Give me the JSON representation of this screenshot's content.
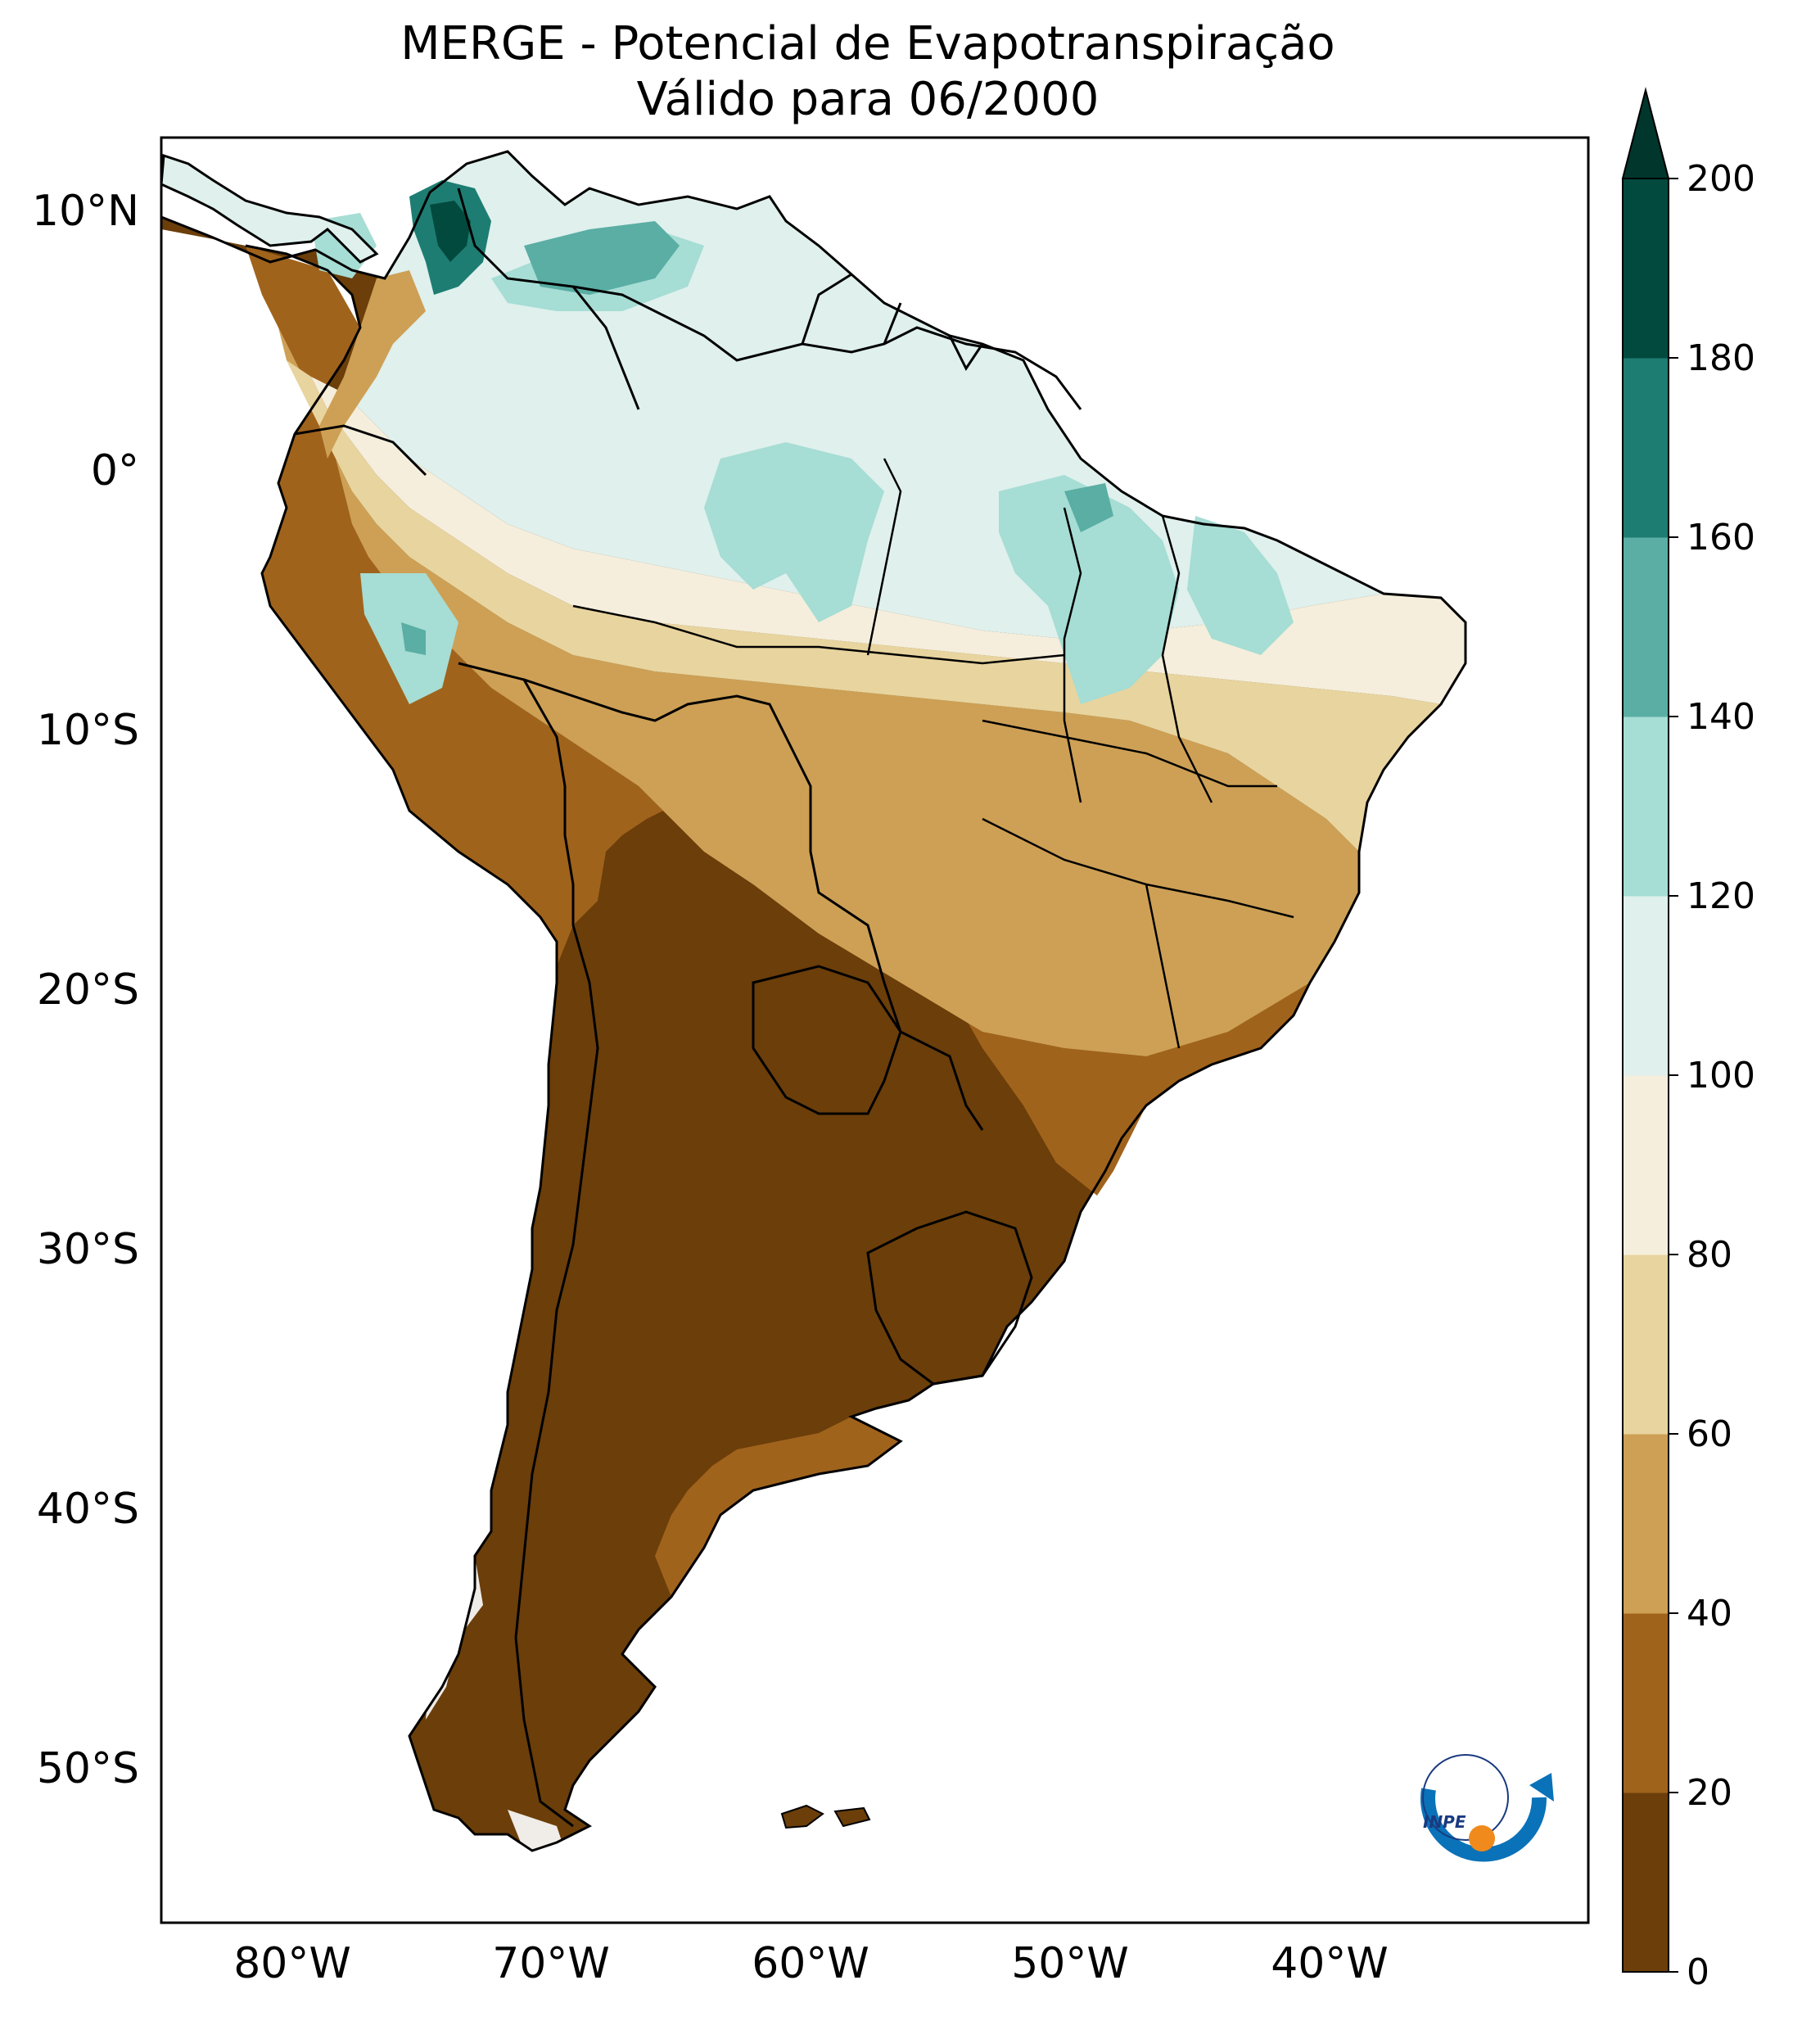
{
  "title": {
    "line1": "MERGE - Potencial de Evapotranspiração",
    "line2": "Válido para 06/2000"
  },
  "map": {
    "lat_labels": [
      "10°N",
      "0°",
      "10°S",
      "20°S",
      "30°S",
      "40°S",
      "50°S"
    ],
    "lon_labels": [
      "80°W",
      "70°W",
      "60°W",
      "50°W",
      "40°W"
    ],
    "extent": {
      "lon": [
        -85,
        -30
      ],
      "lat": [
        -56,
        13
      ]
    }
  },
  "colorbar": {
    "ticks": [
      "0",
      "20",
      "40",
      "60",
      "80",
      "100",
      "120",
      "140",
      "160",
      "180",
      "200"
    ],
    "colors": [
      "#6b3e0a",
      "#a0631c",
      "#cda055",
      "#e8d49e",
      "#f5eedc",
      "#dff0ed",
      "#a6ddd4",
      "#5aaea4",
      "#1e7d72",
      "#034a3e"
    ],
    "extend_color": "#01362c"
  },
  "logo": {
    "text": "INPE",
    "ring_color": "#0a72b8",
    "dot_color": "#f08a1c"
  }
}
